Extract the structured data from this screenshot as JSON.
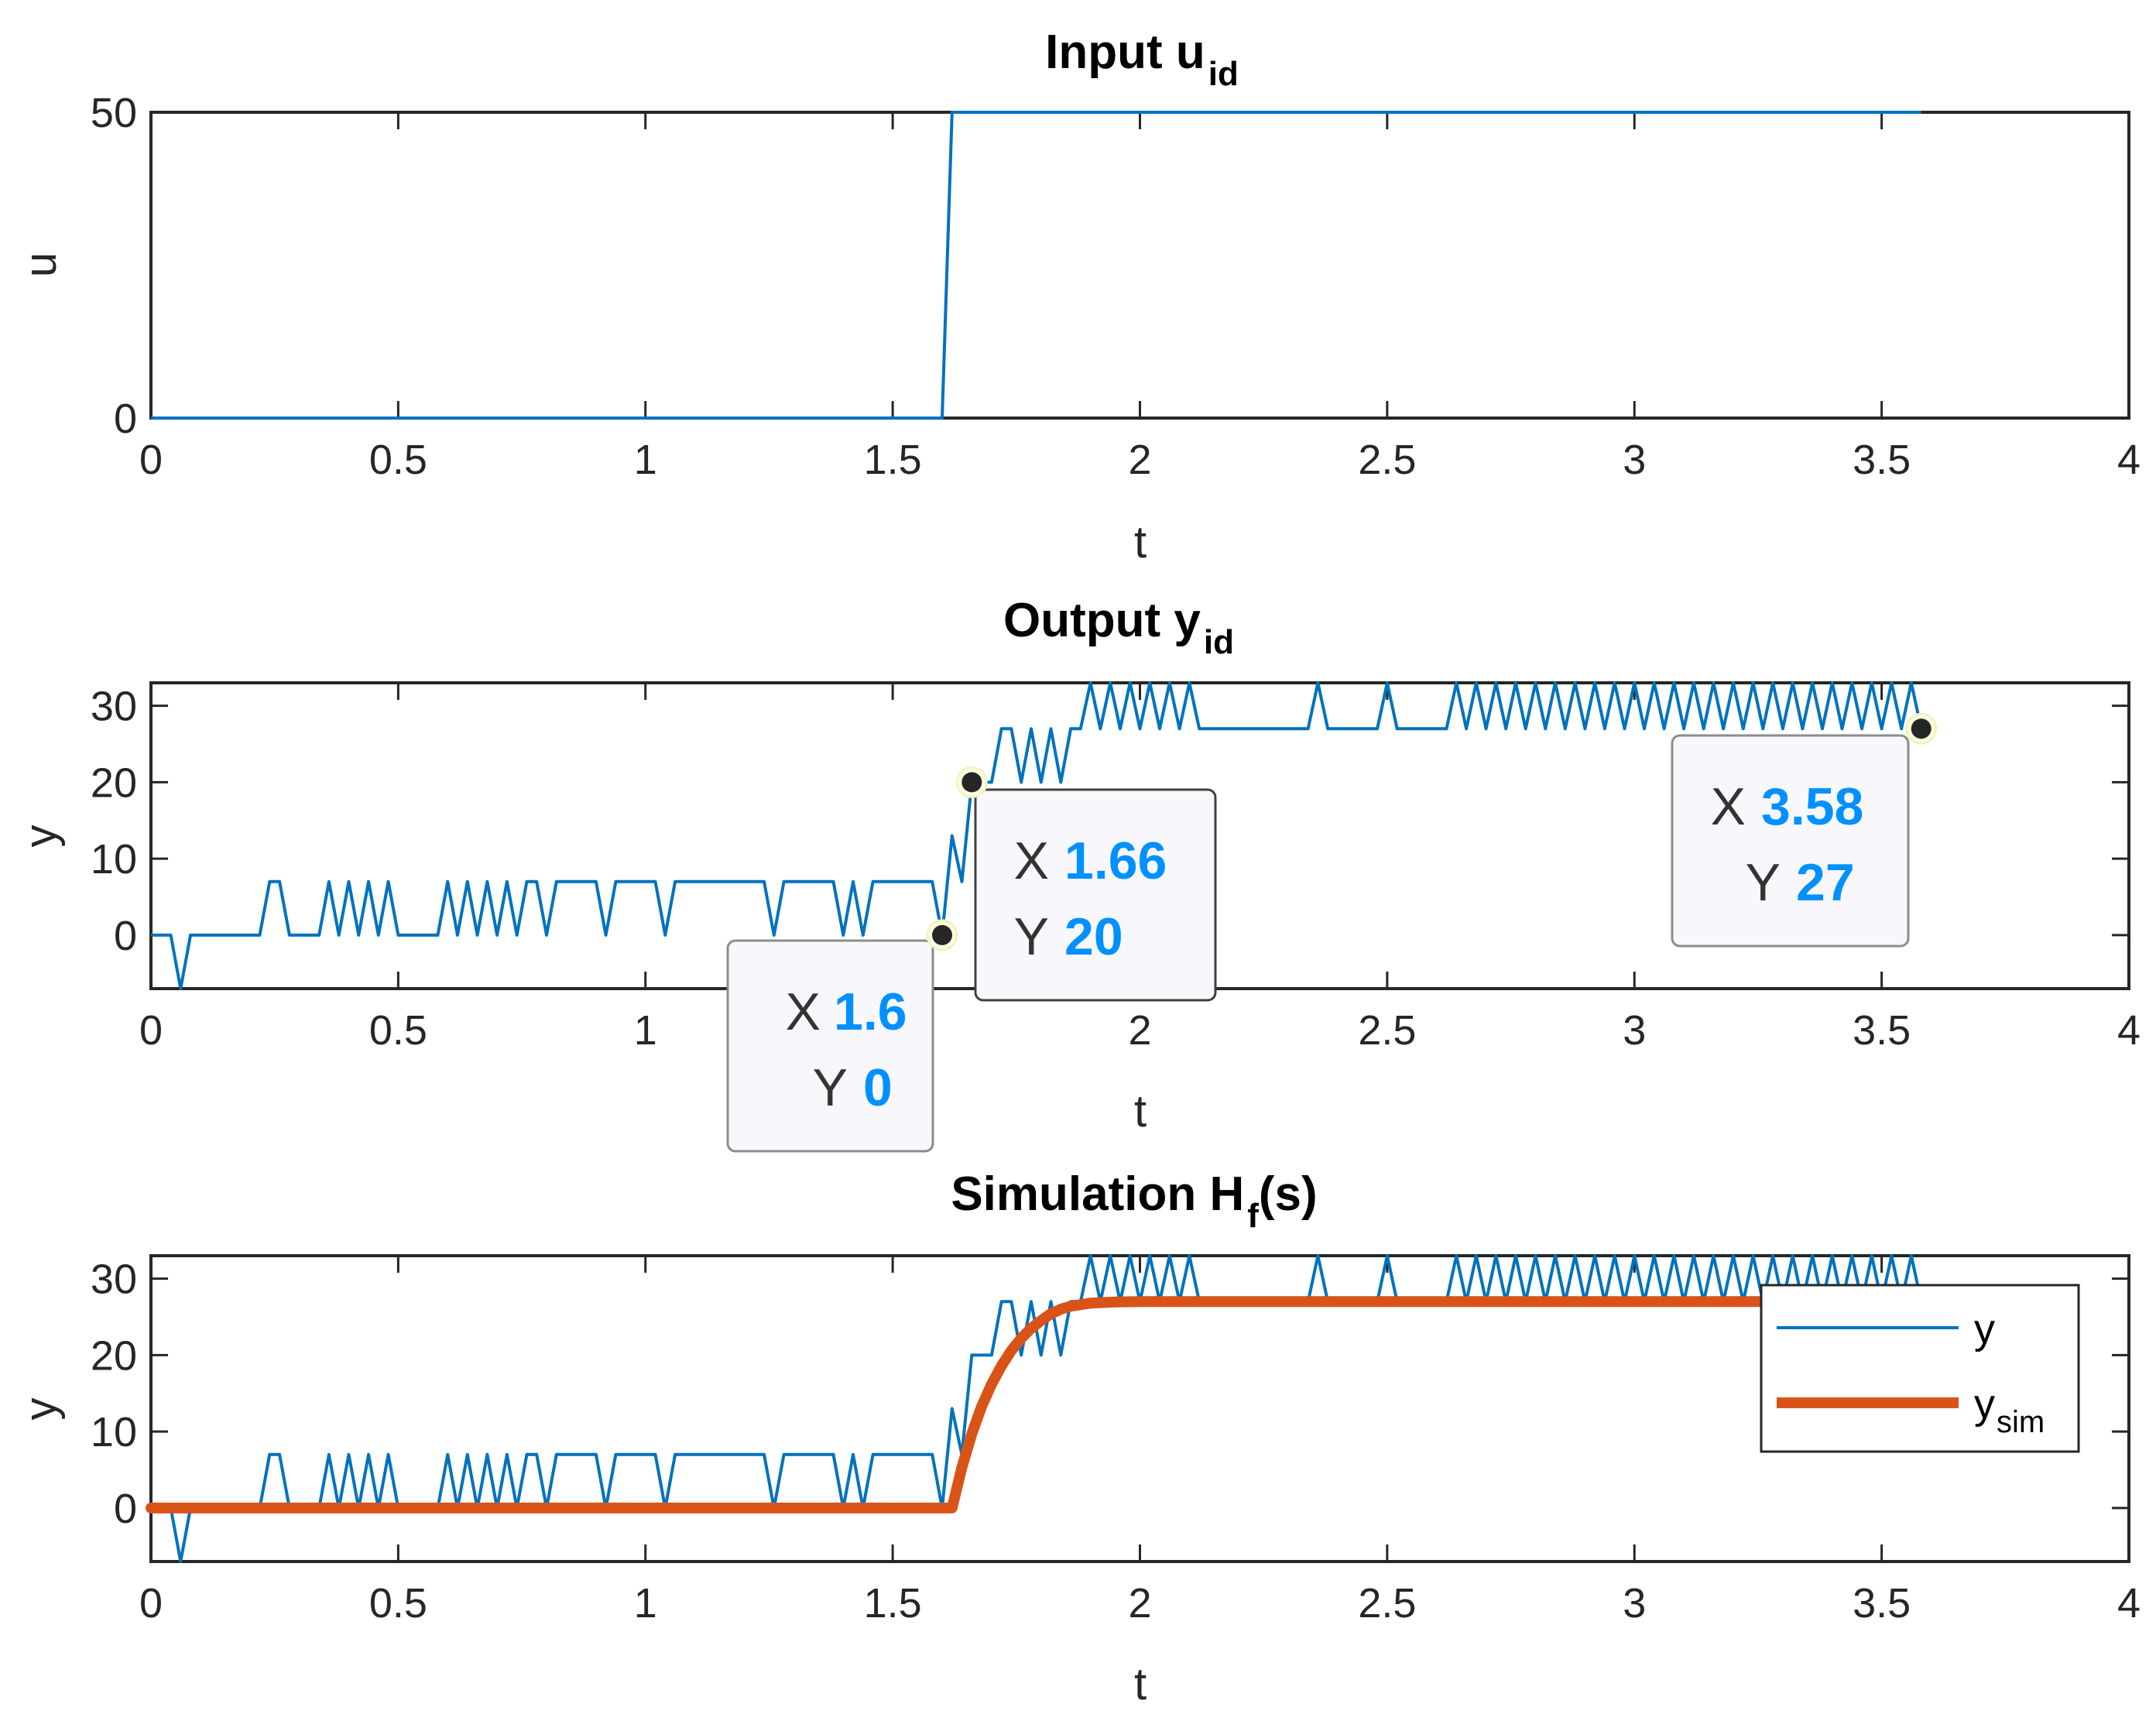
{
  "colors": {
    "blue": "#0072bd",
    "orange": "#d95319",
    "axis": "#262626",
    "tip_value": "#0090ff"
  },
  "chart_data": [
    {
      "type": "line",
      "title": "Input u",
      "title_subscript": "id",
      "xlabel": "t",
      "ylabel": "u",
      "xlim": [
        0,
        4
      ],
      "ylim": [
        0,
        50
      ],
      "xticks": [
        "0",
        "0.5",
        "1",
        "1.5",
        "2",
        "2.5",
        "3",
        "3.5",
        "4"
      ],
      "yticks": [
        "0",
        "50"
      ],
      "series": [
        {
          "name": "u",
          "x": [
            0,
            1.6,
            1.62,
            3.58
          ],
          "y": [
            0,
            0,
            50,
            50
          ]
        }
      ]
    },
    {
      "type": "line",
      "title": "Output y",
      "title_subscript": "id",
      "xlabel": "t",
      "ylabel": "y",
      "xlim": [
        0,
        4
      ],
      "ylim": [
        -7,
        33
      ],
      "xticks": [
        "0",
        "0.5",
        "1",
        "1.5",
        "2",
        "2.5",
        "3",
        "3.5",
        "4"
      ],
      "yticks": [
        "0",
        "10",
        "20",
        "30"
      ],
      "series": [
        {
          "name": "y",
          "x": [
            0,
            0.04,
            0.06,
            0.08,
            0.22,
            0.24,
            0.26,
            0.28,
            0.34,
            0.36,
            0.38,
            0.4,
            0.42,
            0.44,
            0.46,
            0.48,
            0.5,
            0.58,
            0.6,
            0.62,
            0.64,
            0.66,
            0.68,
            0.7,
            0.72,
            0.74,
            0.76,
            0.78,
            0.8,
            0.82,
            0.9,
            0.92,
            0.94,
            1.02,
            1.04,
            1.06,
            1.24,
            1.26,
            1.28,
            1.38,
            1.4,
            1.42,
            1.44,
            1.46,
            1.58,
            1.6,
            1.62,
            1.64,
            1.66,
            1.7,
            1.72,
            1.74,
            1.76,
            1.78,
            1.8,
            1.82,
            1.84,
            1.86,
            1.88,
            1.9,
            1.92,
            1.94,
            1.96,
            1.98,
            2.0,
            2.02,
            2.04,
            2.06,
            2.08,
            2.1,
            2.12,
            2.16,
            2.34,
            2.36,
            2.38,
            2.48,
            2.5,
            2.52,
            2.62,
            2.64,
            2.66,
            2.68,
            2.7,
            2.72,
            2.74,
            2.76,
            2.78,
            2.8,
            2.82,
            2.84,
            2.86,
            2.88,
            2.9,
            2.92,
            2.94,
            2.96,
            2.98,
            3.0,
            3.02,
            3.04,
            3.06,
            3.08,
            3.1,
            3.12,
            3.14,
            3.16,
            3.18,
            3.2,
            3.22,
            3.24,
            3.26,
            3.28,
            3.3,
            3.32,
            3.34,
            3.36,
            3.38,
            3.4,
            3.42,
            3.44,
            3.46,
            3.48,
            3.5,
            3.52,
            3.54,
            3.56,
            3.58
          ],
          "y": [
            0,
            0,
            -7,
            0,
            0,
            7,
            7,
            0,
            0,
            7,
            0,
            7,
            0,
            7,
            0,
            7,
            0,
            0,
            7,
            0,
            7,
            0,
            7,
            0,
            7,
            0,
            7,
            7,
            0,
            7,
            7,
            0,
            7,
            7,
            0,
            7,
            7,
            0,
            7,
            7,
            0,
            7,
            0,
            7,
            7,
            0,
            13,
            7,
            20,
            20,
            27,
            27,
            20,
            27,
            20,
            27,
            20,
            27,
            27,
            33,
            27,
            33,
            27,
            33,
            27,
            33,
            27,
            33,
            27,
            33,
            27,
            27,
            27,
            33,
            27,
            27,
            33,
            27,
            27,
            33,
            27,
            33,
            27,
            33,
            27,
            33,
            27,
            33,
            27,
            33,
            27,
            33,
            27,
            33,
            27,
            33,
            27,
            33,
            27,
            33,
            27,
            33,
            27,
            33,
            27,
            33,
            27,
            33,
            27,
            33,
            27,
            33,
            27,
            33,
            27,
            33,
            27,
            33,
            27,
            33,
            27,
            33,
            27,
            33,
            27,
            33,
            27
          ]
        }
      ],
      "datatips": [
        {
          "x": 1.6,
          "y": 0,
          "label_x": "X",
          "label_y": "Y",
          "value_x": "1.6",
          "value_y": "0"
        },
        {
          "x": 1.66,
          "y": 20,
          "label_x": "X",
          "label_y": "Y",
          "value_x": "1.66",
          "value_y": "20"
        },
        {
          "x": 3.58,
          "y": 27,
          "label_x": "X",
          "label_y": "Y",
          "value_x": "3.58",
          "value_y": "27"
        }
      ]
    },
    {
      "type": "line",
      "title": "Simulation H",
      "title_subscript": "f",
      "title_suffix": "(s)",
      "xlabel": "t",
      "ylabel": "y",
      "xlim": [
        0,
        4
      ],
      "ylim": [
        -7,
        33
      ],
      "xticks": [
        "0",
        "0.5",
        "1",
        "1.5",
        "2",
        "2.5",
        "3",
        "3.5",
        "4"
      ],
      "yticks": [
        "0",
        "10",
        "20",
        "30"
      ],
      "series": [
        {
          "name": "y",
          "legend": "y",
          "legend_subscript": "",
          "ref": "y_measured"
        },
        {
          "name": "y_sim",
          "legend": "y",
          "legend_subscript": "sim",
          "x": [
            0,
            1.62,
            1.64,
            1.66,
            1.68,
            1.7,
            1.72,
            1.74,
            1.76,
            1.78,
            1.8,
            1.82,
            1.84,
            1.86,
            1.9,
            1.95,
            2.0,
            2.1,
            2.2,
            3.58
          ],
          "y": [
            0,
            0,
            5.3,
            9.7,
            13.3,
            16.2,
            18.6,
            20.6,
            22.2,
            23.5,
            24.5,
            25.4,
            26.0,
            26.4,
            26.8,
            26.95,
            27,
            27,
            27,
            27
          ]
        }
      ],
      "legend_position": "east"
    }
  ]
}
